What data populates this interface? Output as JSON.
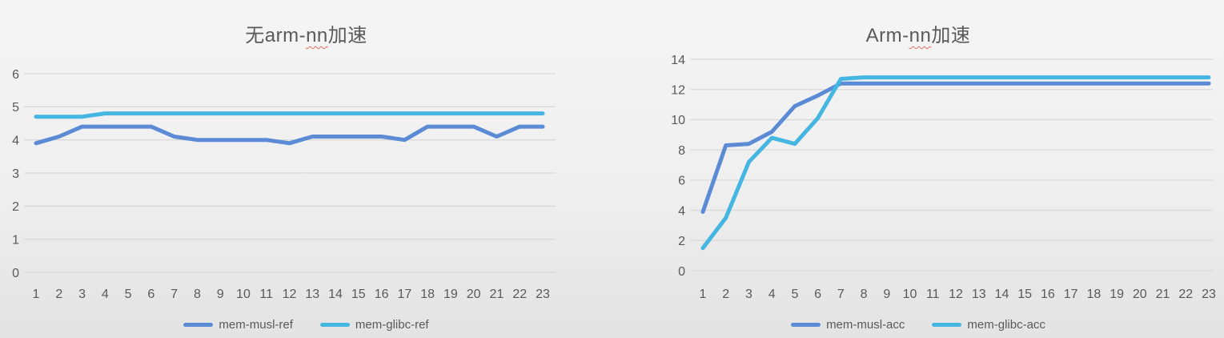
{
  "colors": {
    "series_blue": "#5B8BD5",
    "series_cyan": "#45B5E2",
    "gridline": "#D9D9D9",
    "axis_text": "#595959",
    "title_text": "#595959",
    "spellcheck_wave": "#E0503C"
  },
  "chart_data": [
    {
      "type": "line",
      "title": "无arm-nn加速",
      "title_parts": {
        "pre": "无arm-",
        "misspelled": "nn",
        "post": "加速"
      },
      "categories": [
        1,
        2,
        3,
        4,
        5,
        6,
        7,
        8,
        9,
        10,
        11,
        12,
        13,
        14,
        15,
        16,
        17,
        18,
        19,
        20,
        21,
        22,
        23
      ],
      "yticks": [
        0,
        1,
        2,
        3,
        4,
        5,
        6
      ],
      "ylim": [
        0,
        6
      ],
      "grid": true,
      "legend_position": "bottom",
      "series": [
        {
          "name": "mem-musl-ref",
          "color": "#5B8BD5",
          "values": [
            3.9,
            4.1,
            4.4,
            4.4,
            4.4,
            4.4,
            4.1,
            4.0,
            4.0,
            4.0,
            4.0,
            3.9,
            4.1,
            4.1,
            4.1,
            4.1,
            4.0,
            4.4,
            4.4,
            4.4,
            4.1,
            4.4,
            4.4
          ]
        },
        {
          "name": "mem-glibc-ref",
          "color": "#45B5E2",
          "values": [
            4.7,
            4.7,
            4.7,
            4.8,
            4.8,
            4.8,
            4.8,
            4.8,
            4.8,
            4.8,
            4.8,
            4.8,
            4.8,
            4.8,
            4.8,
            4.8,
            4.8,
            4.8,
            4.8,
            4.8,
            4.8,
            4.8,
            4.8
          ]
        }
      ]
    },
    {
      "type": "line",
      "title": "Arm-nn加速",
      "title_parts": {
        "pre": "Arm-",
        "misspelled": "nn",
        "post": "加速"
      },
      "categories": [
        1,
        2,
        3,
        4,
        5,
        6,
        7,
        8,
        9,
        10,
        11,
        12,
        13,
        14,
        15,
        16,
        17,
        18,
        19,
        20,
        21,
        22,
        23
      ],
      "yticks": [
        0,
        2,
        4,
        6,
        8,
        10,
        12,
        14
      ],
      "ylim": [
        0,
        14
      ],
      "grid": true,
      "legend_position": "bottom",
      "series": [
        {
          "name": "mem-musl-acc",
          "color": "#5B8BD5",
          "values": [
            3.9,
            8.3,
            8.4,
            9.2,
            10.9,
            11.6,
            12.4,
            12.4,
            12.4,
            12.4,
            12.4,
            12.4,
            12.4,
            12.4,
            12.4,
            12.4,
            12.4,
            12.4,
            12.4,
            12.4,
            12.4,
            12.4,
            12.4
          ]
        },
        {
          "name": "mem-glibc-acc",
          "color": "#45B5E2",
          "values": [
            1.5,
            3.5,
            7.2,
            8.8,
            8.4,
            10.1,
            12.7,
            12.8,
            12.8,
            12.8,
            12.8,
            12.8,
            12.8,
            12.8,
            12.8,
            12.8,
            12.8,
            12.8,
            12.8,
            12.8,
            12.8,
            12.8,
            12.8
          ]
        }
      ]
    }
  ]
}
